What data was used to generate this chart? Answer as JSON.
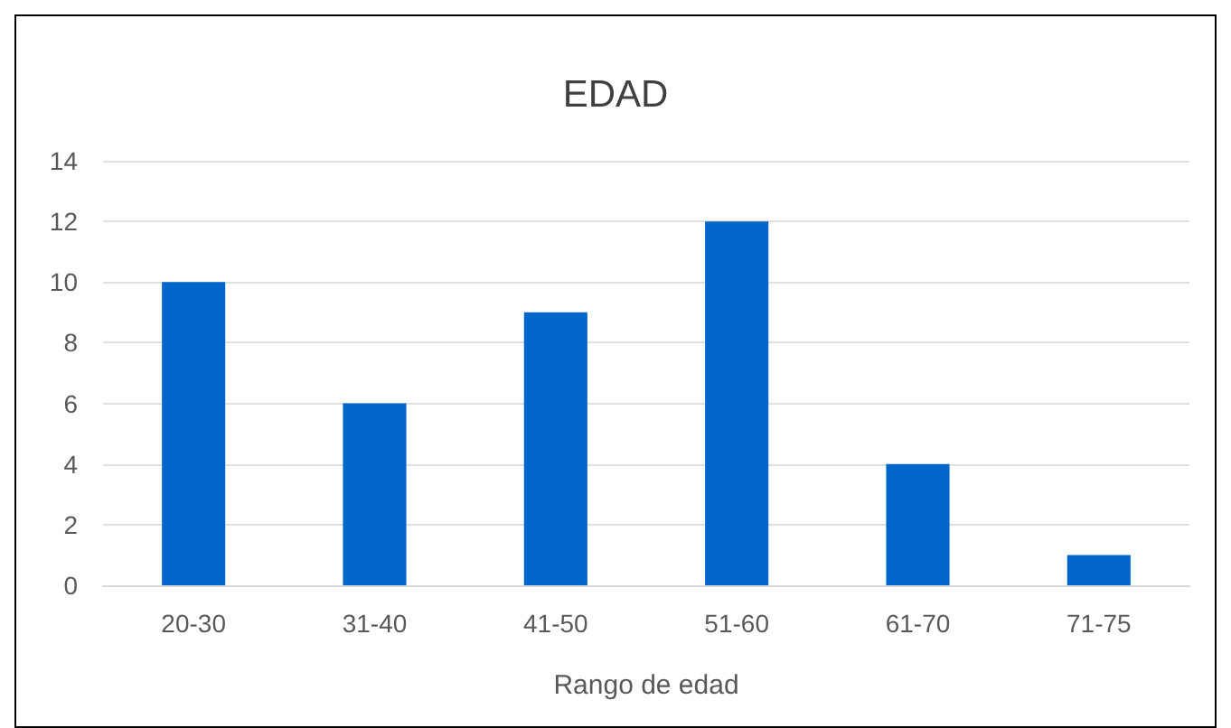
{
  "chart_data": {
    "type": "bar",
    "title": "EDAD",
    "xlabel": "Rango de edad",
    "categories": [
      "20-30",
      "31-40",
      "41-50",
      "51-60",
      "61-70",
      "71-75"
    ],
    "values": [
      10,
      6,
      9,
      12,
      4,
      1
    ],
    "color": "#0066cc",
    "ylim": [
      0,
      14
    ],
    "yticks": [
      0,
      2,
      4,
      6,
      8,
      10,
      12,
      14
    ],
    "grid": "y"
  }
}
